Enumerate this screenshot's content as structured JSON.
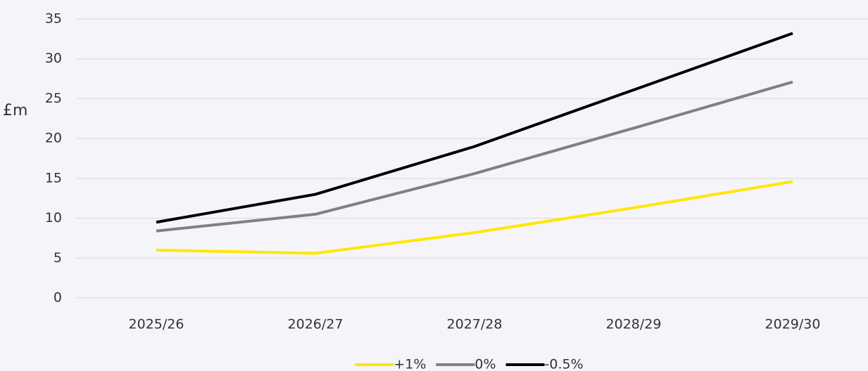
{
  "chart_data": {
    "type": "line",
    "y_label": "£m",
    "categories": [
      "2025/26",
      "2026/27",
      "2027/28",
      "2028/29",
      "2029/30"
    ],
    "series": [
      {
        "name": "+1%",
        "color": "#ffe600",
        "values": [
          6.0,
          5.6,
          8.2,
          11.3,
          14.6
        ]
      },
      {
        "name": "0%",
        "color": "#808080",
        "values": [
          8.4,
          10.5,
          15.6,
          21.3,
          27.1
        ]
      },
      {
        "name": "-0.5%",
        "color": "#000000",
        "values": [
          9.5,
          13.0,
          19.0,
          26.1,
          33.2
        ]
      }
    ],
    "ylim": [
      0,
      35
    ],
    "yticks": [
      0,
      5,
      10,
      15,
      20,
      25,
      30,
      35
    ],
    "grid": true,
    "legend": "bottom"
  }
}
